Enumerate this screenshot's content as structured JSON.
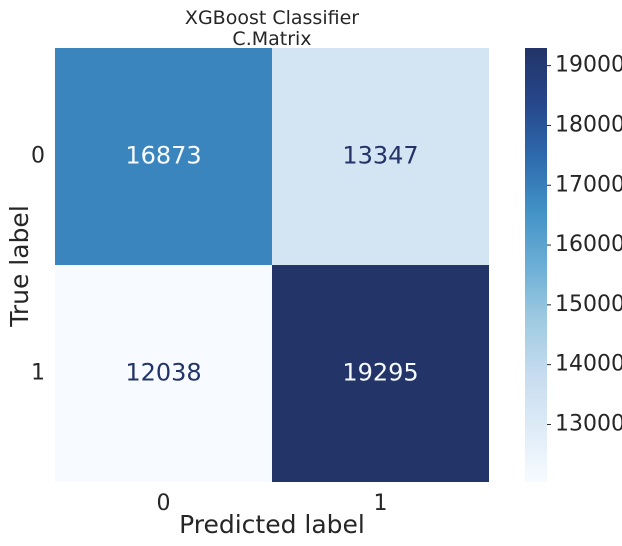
{
  "chart_data": {
    "type": "heatmap",
    "title": "XGBoost Classifier",
    "subtitle": "C.Matrix",
    "xlabel": "Predicted label",
    "ylabel": "True label",
    "x_categories": [
      "0",
      "1"
    ],
    "y_categories": [
      "0",
      "1"
    ],
    "values": [
      [
        16873,
        13347
      ],
      [
        12038,
        19295
      ]
    ],
    "value_labels": [
      [
        "16873",
        "13347"
      ],
      [
        "12038",
        "19295"
      ]
    ],
    "colormap": "Blues",
    "grid": false,
    "colorbar": {
      "min": 12038,
      "max": 19295,
      "ticks": [
        13000,
        14000,
        15000,
        16000,
        17000,
        18000,
        19000
      ],
      "tick_labels": [
        "13000",
        "14000",
        "15000",
        "16000",
        "17000",
        "18000",
        "19000"
      ],
      "placement": "right"
    },
    "colors": {
      "low": "#f7fbff",
      "high": "#223468",
      "text_on_light": "#223468",
      "text_on_dark": "#f7fbff"
    }
  }
}
